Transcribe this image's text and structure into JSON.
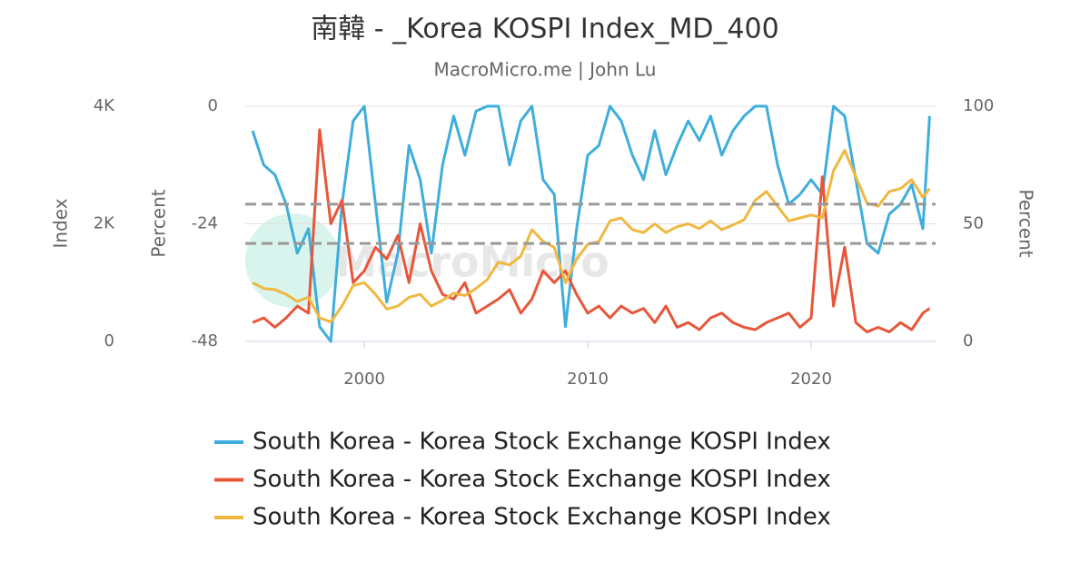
{
  "chart_data": {
    "type": "line",
    "title": "南韓 - _Korea KOSPI Index_MD_400",
    "subtitle": "MacroMicro.me | John Lu",
    "watermark": "MacroMicro",
    "y_label": "Index",
    "y3_label": "Percent",
    "y2_label": "Percent",
    "x": [
      1995.0,
      1995.5,
      1996.0,
      1996.5,
      1997.0,
      1997.5,
      1998.0,
      1998.5,
      1999.0,
      1999.5,
      2000.0,
      2000.5,
      2001.0,
      2001.5,
      2002.0,
      2002.5,
      2003.0,
      2003.5,
      2004.0,
      2004.5,
      2005.0,
      2005.5,
      2006.0,
      2006.5,
      2007.0,
      2007.5,
      2008.0,
      2008.5,
      2009.0,
      2009.5,
      2010.0,
      2010.5,
      2011.0,
      2011.5,
      2012.0,
      2012.5,
      2013.0,
      2013.5,
      2014.0,
      2014.5,
      2015.0,
      2015.5,
      2016.0,
      2016.5,
      2017.0,
      2017.5,
      2018.0,
      2018.5,
      2019.0,
      2019.5,
      2020.0,
      2020.5,
      2021.0,
      2021.5,
      2022.0,
      2022.5,
      2023.0,
      2023.5,
      2024.0,
      2024.5,
      2025.0,
      2025.3
    ],
    "xlim": [
      1994.67,
      2025.57
    ],
    "xticks": [
      2000,
      2010,
      2020
    ],
    "ylim": [
      0,
      4000
    ],
    "yticks": [
      0,
      {
        "value": 2000,
        "label": "2K"
      },
      {
        "value": 4000,
        "label": "4K"
      }
    ],
    "y3lim": [
      -48,
      0
    ],
    "y3ticks": [
      -48,
      -24,
      0
    ],
    "y2lim": [
      0,
      100
    ],
    "y2ticks": [
      0,
      50,
      100
    ],
    "grid": true,
    "reference_lines": [
      {
        "value": -20,
        "axis": "y3"
      },
      {
        "value": -28,
        "axis": "y3"
      }
    ],
    "series": [
      {
        "name": "South Korea - Korea Stock Exchange KOSPI Index",
        "color": "#3eaedc",
        "axis": "y3",
        "values": [
          -5,
          -12,
          -14,
          -20,
          -30,
          -25,
          -45,
          -48,
          -20,
          -3,
          0,
          -20,
          -40,
          -30,
          -8,
          -15,
          -30,
          -12,
          -2,
          -10,
          -1,
          0,
          0,
          -12,
          -3,
          0,
          -15,
          -18,
          -45,
          -25,
          -10,
          -8,
          0,
          -3,
          -10,
          -15,
          -5,
          -14,
          -8,
          -3,
          -7,
          -2,
          -10,
          -5,
          -2,
          0,
          0,
          -12,
          -20,
          -18,
          -15,
          -18,
          0,
          -2,
          -15,
          -28,
          -30,
          -22,
          -20,
          -16,
          -25,
          -2
        ]
      },
      {
        "name": "South Korea - Korea Stock Exchange KOSPI Index",
        "color": "#e8563a",
        "axis": "y2",
        "values": [
          8,
          10,
          6,
          10,
          15,
          12,
          90,
          50,
          60,
          25,
          30,
          40,
          35,
          45,
          25,
          50,
          30,
          20,
          18,
          25,
          12,
          15,
          18,
          22,
          12,
          18,
          30,
          25,
          30,
          20,
          12,
          15,
          10,
          15,
          12,
          14,
          8,
          15,
          6,
          8,
          5,
          10,
          12,
          8,
          6,
          5,
          8,
          10,
          12,
          6,
          10,
          70,
          15,
          40,
          8,
          4,
          6,
          4,
          8,
          5,
          12,
          14
        ]
      },
      {
        "name": "South Korea - Korea Stock Exchange KOSPI Index",
        "color": "#f0b840",
        "axis": "y",
        "values": [
          1000,
          900,
          880,
          800,
          680,
          750,
          400,
          330,
          600,
          950,
          1000,
          800,
          550,
          600,
          750,
          800,
          600,
          700,
          820,
          780,
          900,
          1050,
          1350,
          1300,
          1450,
          1900,
          1700,
          1600,
          1000,
          1400,
          1650,
          1700,
          2050,
          2100,
          1900,
          1850,
          2000,
          1850,
          1950,
          2000,
          1920,
          2050,
          1900,
          1980,
          2070,
          2400,
          2550,
          2300,
          2050,
          2100,
          2150,
          2100,
          2900,
          3250,
          2800,
          2350,
          2300,
          2550,
          2600,
          2750,
          2450,
          2600
        ]
      }
    ]
  }
}
